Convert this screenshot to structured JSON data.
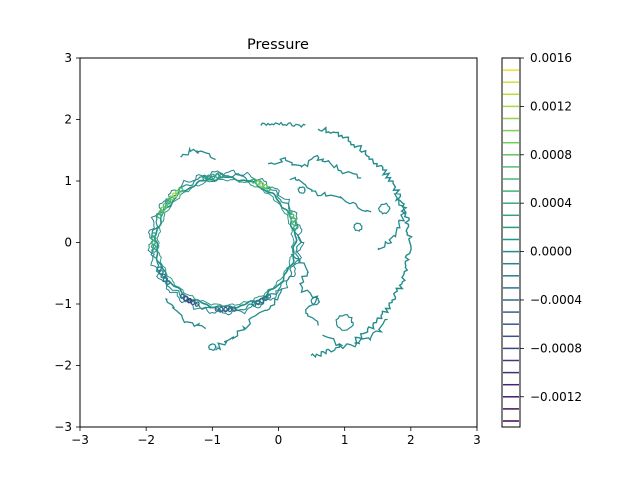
{
  "chart_data": {
    "type": "contour",
    "title": "Pressure",
    "xlabel": "",
    "ylabel": "",
    "xlim": [
      -3,
      3
    ],
    "ylim": [
      -3,
      3
    ],
    "x_ticks": [
      -3,
      -2,
      -1,
      0,
      1,
      2,
      3
    ],
    "y_ticks": [
      -3,
      -2,
      -1,
      0,
      1,
      2,
      3
    ],
    "x_tick_labels": [
      "−3",
      "−2",
      "−1",
      "0",
      "1",
      "2",
      "3"
    ],
    "y_tick_labels": [
      "−3",
      "−2",
      "−1",
      "0",
      "1",
      "2",
      "3"
    ],
    "grid": false,
    "colormap": "viridis",
    "colorbar": {
      "range": [
        -0.00145,
        0.0016
      ],
      "ticks": [
        -0.0012,
        -0.0008,
        -0.0004,
        0.0,
        0.0004,
        0.0008,
        0.0012,
        0.0016
      ],
      "tick_labels": [
        "−0.0012",
        "−0.0008",
        "−0.0004",
        "0.0000",
        "0.0004",
        "0.0008",
        "0.0012",
        "0.0016"
      ],
      "level_step": 0.0001
    },
    "cylinder": {
      "center": [
        -0.8,
        0.0
      ],
      "radius": 1.05
    },
    "domain_boundary": {
      "center": [
        0.0,
        0.0
      ],
      "radius": 2.0
    },
    "ring_levels": [
      {
        "angle_deg": 135,
        "level": 0.0012
      },
      {
        "angle_deg": 150,
        "level": 0.0009
      },
      {
        "angle_deg": 60,
        "level": 0.0011
      },
      {
        "angle_deg": 20,
        "level": 0.0007
      },
      {
        "angle_deg": 180,
        "level": 0.0005
      },
      {
        "angle_deg": -90,
        "level": -0.0006
      },
      {
        "angle_deg": -120,
        "level": -0.0009
      },
      {
        "angle_deg": -60,
        "level": -0.0004
      },
      {
        "angle_deg": -150,
        "level": -0.0003
      },
      {
        "angle_deg": 100,
        "level": 0.0003
      }
    ]
  }
}
